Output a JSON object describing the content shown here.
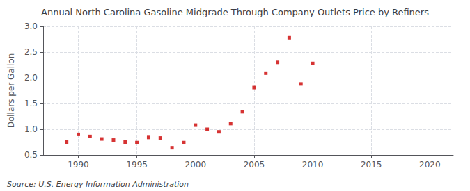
{
  "chart_data": {
    "type": "scatter",
    "title": "Annual North Carolina Gasoline Midgrade Through Company Outlets Price by Refiners",
    "ylabel": "Dollars per Gallon",
    "annotations": [
      "Source: U.S. Energy Information Administration"
    ],
    "x": [
      1989,
      1990,
      1991,
      1992,
      1993,
      1994,
      1995,
      1996,
      1997,
      1998,
      1999,
      2000,
      2001,
      2002,
      2003,
      2004,
      2005,
      2006,
      2007,
      2008,
      2009,
      2010
    ],
    "values": [
      0.75,
      0.9,
      0.86,
      0.81,
      0.79,
      0.75,
      0.74,
      0.84,
      0.83,
      0.64,
      0.74,
      1.08,
      1.0,
      0.95,
      1.11,
      1.34,
      1.81,
      2.09,
      2.3,
      2.78,
      1.88,
      2.28
    ],
    "color": "#cc0000",
    "marker": "square",
    "xlim": [
      1987,
      2022
    ],
    "ylim": [
      0.5,
      3.0
    ],
    "xticks": [
      1990,
      1995,
      2000,
      2005,
      2010,
      2015,
      2020
    ],
    "yticks": [
      0.5,
      {
        "value": 1.0,
        "label": "1.0"
      },
      1.5,
      {
        "value": 2.0,
        "label": "2.0"
      },
      2.5,
      {
        "value": 3.0,
        "label": "3.0"
      }
    ],
    "grid": true
  }
}
